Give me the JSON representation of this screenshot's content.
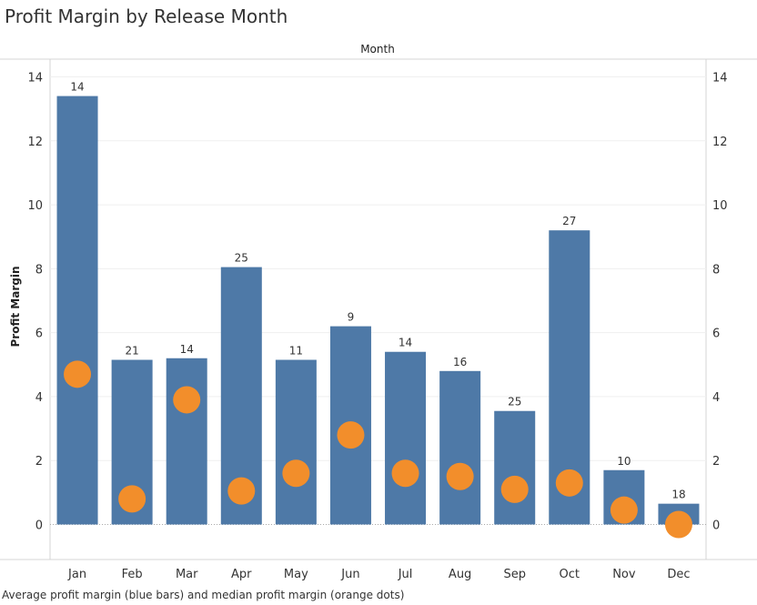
{
  "chart_data": {
    "type": "bar",
    "title": "Profit Margin by Release Month",
    "xlabel": "Month",
    "ylabel": "Profit Margin",
    "caption": "Average profit margin (blue bars) and median profit margin (orange dots)",
    "categories": [
      "Jan",
      "Feb",
      "Mar",
      "Apr",
      "May",
      "Jun",
      "Jul",
      "Aug",
      "Sep",
      "Oct",
      "Nov",
      "Dec"
    ],
    "ylim": [
      0,
      14.7
    ],
    "yticks": [
      0,
      2,
      4,
      6,
      8,
      10,
      12,
      14
    ],
    "secondary_yticks": [
      0,
      2,
      4,
      6,
      8,
      10,
      12,
      14
    ],
    "grid": true,
    "series": [
      {
        "type": "bar",
        "color": "#4e79a7",
        "values": [
          13.4,
          5.15,
          5.2,
          8.05,
          5.15,
          6.2,
          5.4,
          4.8,
          3.55,
          9.2,
          1.7,
          0.65
        ],
        "data_labels": [
          "14",
          "21",
          "14",
          "25",
          "11",
          "9",
          "14",
          "16",
          "25",
          "27",
          "10",
          "18"
        ]
      },
      {
        "type": "scatter",
        "color": "#f28e2b",
        "values": [
          4.7,
          0.8,
          3.9,
          1.05,
          1.6,
          2.8,
          1.6,
          1.5,
          1.1,
          1.3,
          0.45,
          0.0
        ]
      }
    ]
  }
}
